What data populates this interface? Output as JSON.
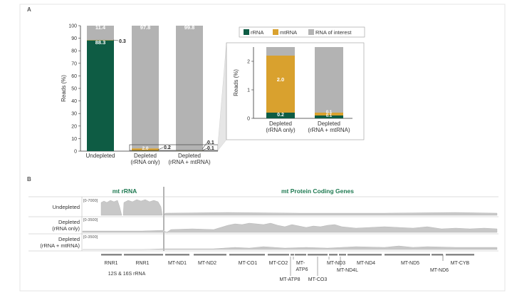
{
  "panel_a": {
    "label": "A"
  },
  "panel_b": {
    "label": "B"
  },
  "colors": {
    "rrna": "#0e5c44",
    "mtrna": "#d9a12e",
    "interest": "#b3b3b3",
    "green_text": "#1f7a52",
    "track_fill": "#c8c8c8"
  },
  "legend": {
    "items": [
      {
        "label": "rRNA",
        "color": "#0e5c44"
      },
      {
        "label": "mtRNA",
        "color": "#d9a12e"
      },
      {
        "label": "RNA of interest",
        "color": "#b3b3b3"
      }
    ]
  },
  "chart_data": [
    {
      "type": "bar",
      "stacked": true,
      "ylabel": "Reads (%)",
      "ylim": [
        0,
        100
      ],
      "yticks": [
        0,
        10,
        20,
        30,
        40,
        50,
        60,
        70,
        80,
        90,
        100
      ],
      "categories": [
        {
          "line1": "Undepleted",
          "line2": ""
        },
        {
          "line1": "Depleted",
          "line2": "(rRNA only)"
        },
        {
          "line1": "Depleted",
          "line2": "(rRNA + mtRNA)"
        }
      ],
      "series": [
        {
          "key": "rrna",
          "values": [
            88.3,
            0.2,
            0.1
          ]
        },
        {
          "key": "mtrna",
          "values": [
            0.3,
            2.0,
            0.1
          ]
        },
        {
          "key": "interest",
          "values": [
            11.4,
            97.8,
            99.8
          ]
        }
      ],
      "data_labels": {
        "bar1_rrna": "88.3",
        "bar1_interest": "11.4",
        "bar1_mtrna": "0.3",
        "bar2_mtrna": "2.0",
        "bar2_rrna": "0.2",
        "bar2_interest": "97.8",
        "bar3_interest": "99.8",
        "bar3_mtrna": "0.1",
        "bar3_rrna": "0.1"
      }
    },
    {
      "type": "bar",
      "stacked": true,
      "ylabel": "Reads (%)",
      "ylim": [
        0,
        2.5
      ],
      "yticks": [
        0,
        1,
        2
      ],
      "categories": [
        {
          "line1": "Depleted",
          "line2": "(rRNA only)"
        },
        {
          "line1": "Depleted",
          "line2": "(rRNA + mtRNA)"
        }
      ],
      "series": [
        {
          "key": "rrna",
          "values": [
            0.2,
            0.1
          ]
        },
        {
          "key": "mtrna",
          "values": [
            2.0,
            0.1
          ]
        },
        {
          "key": "interest",
          "values": [
            0.3,
            2.3
          ]
        }
      ],
      "data_labels": {
        "bar1_rrna": "0.2",
        "bar1_mtrna": "2.0",
        "bar2_rrna": "0.1",
        "bar2_mtrna": "0.1"
      }
    }
  ],
  "tracks": {
    "section_left": "mt rRNA",
    "section_right": "mt Protein Coding Genes",
    "rows": [
      {
        "name1": "Undepleted",
        "name2": "",
        "range": "[0-7000]"
      },
      {
        "name1": "Depleted",
        "name2": "(rRNA only)",
        "range": "[0-3500]"
      },
      {
        "name1": "Depleted",
        "name2": "(rRNA + mtRNA)",
        "range": "[0-3500]"
      }
    ],
    "genes": [
      "RNR1",
      "RNR1",
      "MT-ND1",
      "MT-ND2",
      "MT-CO1",
      "MT-CO2",
      "MT-",
      "ATP6",
      "MT-ND3",
      "MT-ND4",
      "MT-ND5",
      "MT-CYB",
      "MT-ATP8",
      "MT-CO3",
      "MT-ND4L",
      "MT-ND6"
    ],
    "rrna_group_label": "12S & 16S rRNA"
  }
}
